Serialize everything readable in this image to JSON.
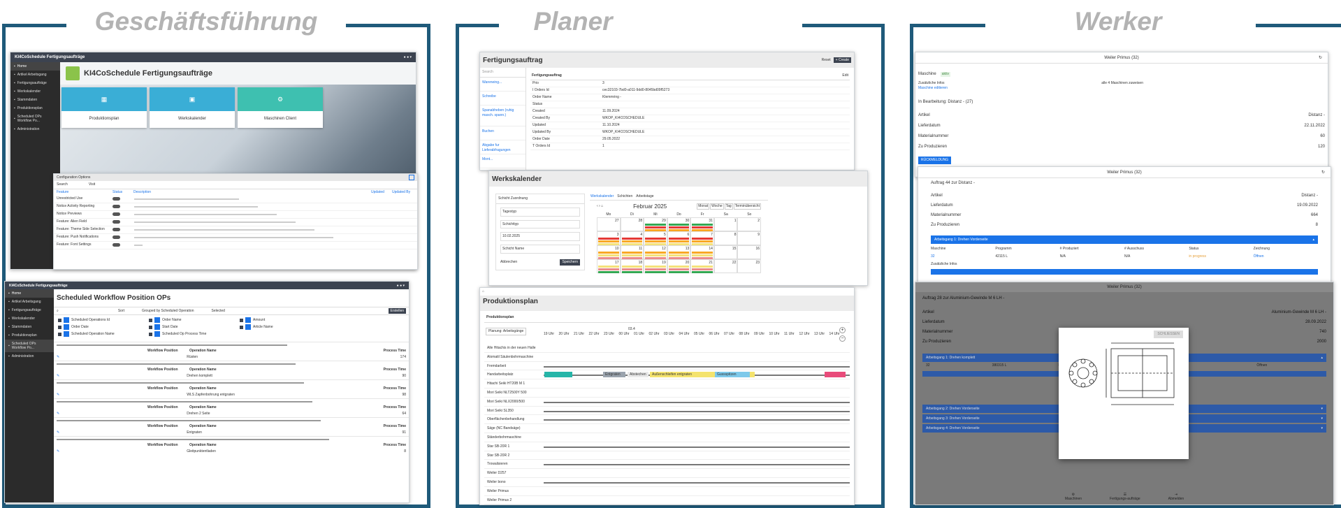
{
  "accent_color": "#1f5a7a",
  "panels": {
    "left": {
      "title": "Geschäftsführung"
    },
    "mid": {
      "title": "Planer"
    },
    "right": {
      "title": "Werker"
    }
  },
  "gf": {
    "app_title": "KI4CoSchedule Fertigungsaufträge",
    "sidebar": [
      "Home",
      "Artikel Arbeitsgang",
      "Fertigungsaufträge",
      "Werkskalender",
      "Stammdaten",
      "Produktionsplan",
      "Scheduled OPs Workflow Po...",
      "Administration"
    ],
    "hero_title": "KI4CoSchedule Fertigungsaufträge",
    "tiles": [
      "Produktionsplan",
      "Werkskalender",
      "Maschinen Client"
    ],
    "config": {
      "title": "Configuration Options",
      "view_label": "Visit",
      "search_placeholder": "Search",
      "columns": [
        "Feature",
        "Status",
        "Description",
        "Updated",
        "Updated By"
      ],
      "rows": [
        "Unrestricted Use",
        "Notice Activity Reporting",
        "Notice Previews",
        "Feature: Alien Field",
        "Feature: Theme Side Selection",
        "Feature: Push Notifications",
        "Feature: Font Settings"
      ]
    },
    "workflow": {
      "app_title": "KI4CoSchedule Fertigungsaufträge",
      "title": "Scheduled Workflow Position OPs",
      "toolbar": [
        "Sort",
        "Grouped by Scheduled Operation",
        "Selected"
      ],
      "create": "Erstellen",
      "filters": [
        "Scheduled Operations Id",
        "Order Date",
        "Scheduled Operation Name",
        "Order Name",
        "Start Date",
        "Scheduled Op Process Time",
        "Amount",
        "Article Name"
      ],
      "group_header": "Workflow Position",
      "col_name": "Operation Name",
      "col_time": "Process Time",
      "ops": [
        "Rüsten",
        "Drehen komplett",
        "WLS Zapfenbohrung entgraten",
        "Drehen 2 Seite",
        "Entgraten",
        "Gleitpunktentladen"
      ],
      "times": [
        "174",
        "90",
        "98",
        "64",
        "91",
        "8"
      ]
    }
  },
  "planer": {
    "fa": {
      "title": "Fertigungsauftrag",
      "btn_reset": "Reset",
      "btn_create": "+ Create",
      "search_placeholder": "Search",
      "list": [
        "Wareneing...",
        "Schreibe",
        "Spanabheben (ruhig masch. spann.)",
        "Buchen",
        "Abgabe fur Lieferabfragungen",
        "Mont..."
      ],
      "card_title": "Fertigungsauftrag",
      "edit": "Edit",
      "fields": [
        [
          "Prio",
          "3"
        ],
        [
          "I Orders Id",
          "cec32103-7bd0-a011-9dd0-8045bd09f5273"
        ],
        [
          "Order Name",
          "Klemmring -"
        ],
        [
          "Status",
          ""
        ],
        [
          "Created",
          "11.09.2024"
        ],
        [
          "Created By",
          "WKOP_KI4COSCHEDULE"
        ],
        [
          "Updated",
          "11.10.2024"
        ],
        [
          "Updated By",
          "WKOP_KI4COSCHEDULE"
        ],
        [
          "Order Date",
          "29.05.2022"
        ],
        [
          "T Orders Id",
          "1"
        ]
      ]
    },
    "cal": {
      "title": "Werkskalender",
      "tabs": [
        "Werkskalender",
        "Schichten",
        "Arbeitstage"
      ],
      "form_title": "Schicht Zuordnung",
      "inputs": [
        "Tagestyp",
        "Schichttyp",
        "Schicht Name"
      ],
      "date_value": "10.02.2025",
      "btn_cancel": "Abbrechen",
      "btn_save": "Speichern",
      "month": "Februar 2025",
      "view_btns": [
        "Monat",
        "Woche",
        "Tag",
        "Terminübersicht"
      ],
      "days": [
        "Mo",
        "Di",
        "Mi",
        "Do",
        "Fr",
        "Sa",
        "So"
      ],
      "dates": [
        [
          "27",
          "28",
          "29",
          "30",
          "31",
          "1",
          "2"
        ],
        [
          "3",
          "4",
          "5",
          "6",
          "7",
          "8",
          "9"
        ],
        [
          "10",
          "11",
          "12",
          "13",
          "14",
          "15",
          "16"
        ],
        [
          "17",
          "18",
          "19",
          "20",
          "21",
          "22",
          "23"
        ]
      ]
    },
    "pp": {
      "title": "Produktionsplan",
      "card_title": "Produktionsplan",
      "planning_btn": "Planung: Arbeitsgänge",
      "week": "03.4",
      "hours": [
        "19 Uhr",
        "20 Uhr",
        "21 Uhr",
        "22 Uhr",
        "23 Uhr",
        "00 Uhr",
        "01 Uhr",
        "02 Uhr",
        "03 Uhr",
        "04 Uhr",
        "05 Uhr",
        "06 Uhr",
        "07 Uhr",
        "08 Uhr",
        "09 Uhr",
        "10 Uhr",
        "11 Uhr",
        "12 Uhr",
        "13 Uhr",
        "14 Uhr"
      ],
      "machines": [
        "Alle Hitachis in der neuen Halle",
        "Alomatil Säulenbohrmaschine",
        "Fremdarbeit",
        "Handarbeitsplatz",
        "Hitachi Seiki HT20B M 1",
        "Mori Seiki NLT2500Y 500",
        "Mori Seiki NLX2000/500",
        "Mori Seiki SL350",
        "Oberflächenbehandlung",
        "Säge (NC Bandsäge)",
        "Ständerbohrmaschine",
        "Star SB-20R 1",
        "Star SB-20R 2",
        "Trowalisieren",
        "Weiler D257",
        "Weiler bono",
        "Weiler Primus",
        "Weiler Primus 2"
      ],
      "bars": [
        "Entgraten",
        "Abstechen",
        "Außenschleifen entgraten",
        "Gussspitzen"
      ]
    }
  },
  "werker": {
    "header": "Weiler Primus (32)",
    "machine_label": "Maschine",
    "machine_status": "aktiv",
    "extra_info": "Zusätzliche Infos",
    "extra_link": "Maschine editieren",
    "assignment": "alle 4 Maschinen zuweisen",
    "inwork": "In Bearbeitung: Distanz - (27)",
    "details": [
      [
        "Artikel",
        "Distanz -"
      ],
      [
        "Lieferdatum",
        "22.11.2022"
      ],
      [
        "Materialnummer",
        "60"
      ],
      [
        "Zu Produzieren",
        "120"
      ]
    ],
    "btn_back": "RÜCKMELDUNG",
    "order2_title": "Auftrag 44 zur Distanz -",
    "details2": [
      [
        "Artikel",
        "Distanz -"
      ],
      [
        "Lieferdatum",
        "19.09.2022"
      ],
      [
        "Materialnummer",
        "664"
      ],
      [
        "Zu Produzieren",
        "8"
      ]
    ],
    "ag_bar": "Arbeitsgang 1: Drehen Vorderseite",
    "ag_cols": [
      "Maschine",
      "Programm",
      "# Produziert",
      "# Ausschuss",
      "Status",
      "Zeichnung"
    ],
    "ag_vals": [
      "32",
      "42115 L",
      "N/A",
      "N/A",
      "in progress",
      "Öffnen"
    ],
    "ag_extra": "Zusätzliche Infos",
    "order3_title": "Auftrag 28 zur Aluminium-Gewinde M 6 LH -",
    "details3": [
      [
        "Artikel",
        "Aluminium-Gewinde M 6 LH -"
      ],
      [
        "Lieferdatum",
        "28.09.2022"
      ],
      [
        "Materialnummer",
        "740"
      ],
      [
        "Zu Produzieren",
        "2000"
      ]
    ],
    "ag_list": [
      "Arbeitsgang 1: Drehen komplett",
      "Arbeitsgang 2: Drehen Vorderseite",
      "Arbeitsgang 3: Drehen Vorderseite",
      "Arbeitsgang 4: Drehen Vorderseite"
    ],
    "ag3_vals": [
      "32",
      "380315 L",
      "N/A",
      "N/A",
      "",
      "Öffnen"
    ],
    "drawing_btn": "SCHLIESSEN",
    "footer": [
      "Maschinen",
      "Fertigungs-aufträge",
      "Abmelden"
    ]
  }
}
